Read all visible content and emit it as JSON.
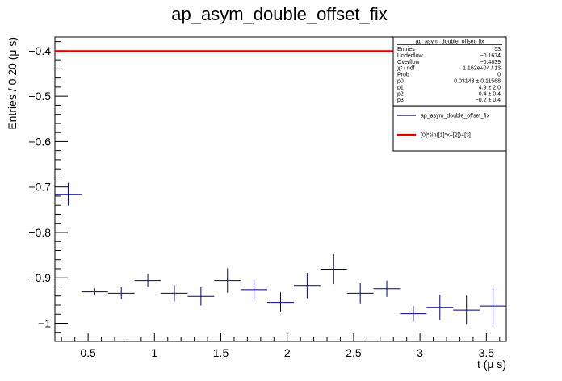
{
  "title": "ap_asym_double_offset_fix",
  "colors": {
    "data": "#000080",
    "fit": "#e00000",
    "axis": "#000000",
    "background": "#ffffff"
  },
  "chart_data": {
    "type": "scatter",
    "title": "ap_asym_double_offset_fix",
    "xlabel": "t (μ s)",
    "ylabel": "Entries / 0.20 (μ s)",
    "xlim": [
      0.25,
      3.65
    ],
    "ylim": [
      -1.04,
      -0.37
    ],
    "grid": false,
    "legend_placement": "top-right",
    "x_ticks": [
      0.5,
      1,
      1.5,
      2,
      2.5,
      3,
      3.5
    ],
    "x_tick_labels": [
      "0.5",
      "1",
      "1.5",
      "2",
      "2.5",
      "3",
      "3.5"
    ],
    "y_ticks": [
      -1,
      -0.9,
      -0.8,
      -0.7,
      -0.6,
      -0.5,
      -0.4
    ],
    "y_tick_labels": [
      "−1",
      "−0.9",
      "−0.8",
      "−0.7",
      "−0.6",
      "−0.5",
      "−0.4"
    ],
    "bin_half_width": 0.1,
    "series": [
      {
        "name": "ap_asym_double_offset_fix",
        "type": "errorbar",
        "x": [
          0.35,
          0.55,
          0.75,
          0.95,
          1.15,
          1.35,
          1.55,
          1.75,
          1.95,
          2.15,
          2.35,
          2.55,
          2.75,
          2.95,
          3.15,
          3.35,
          3.55
        ],
        "y": [
          -0.716,
          -0.931,
          -0.934,
          -0.906,
          -0.934,
          -0.941,
          -0.906,
          -0.926,
          -0.954,
          -0.917,
          -0.881,
          -0.934,
          -0.924,
          -0.979,
          -0.965,
          -0.971,
          -0.962
        ],
        "yerr": [
          0.025,
          0.008,
          0.013,
          0.015,
          0.018,
          0.02,
          0.027,
          0.022,
          0.022,
          0.028,
          0.033,
          0.022,
          0.018,
          0.017,
          0.028,
          0.032,
          0.043
        ]
      },
      {
        "name": "[0]*sin([1]*x+[2])+[3]",
        "type": "line",
        "x": [
          0.25,
          3.65
        ],
        "y": [
          -0.401,
          -0.401
        ]
      }
    ]
  },
  "stats": {
    "title": "ap_asym_double_offset_fix",
    "rows": [
      {
        "key": "Entries",
        "value": "53"
      },
      {
        "key": "Underflow",
        "value": "−0.1674"
      },
      {
        "key": "Overflow",
        "value": "−0.4839"
      },
      {
        "key": "χ² / ndf",
        "value": "1.162e+04 / 13"
      },
      {
        "key": "Prob",
        "value": "0"
      },
      {
        "key": "p0",
        "value": "0.03143 ± 0.11568"
      },
      {
        "key": "p1",
        "value": "4.9 ± 2.0"
      },
      {
        "key": "p2",
        "value": "0.4 ± 0.4"
      },
      {
        "key": "p3",
        "value": "−0.2 ± 0.4"
      }
    ]
  },
  "legend": [
    {
      "label": "ap_asym_double_offset_fix",
      "color": "#000080"
    },
    {
      "label": "[0]*sin([1]*x+[2])+[3]",
      "color": "#e00000"
    }
  ]
}
